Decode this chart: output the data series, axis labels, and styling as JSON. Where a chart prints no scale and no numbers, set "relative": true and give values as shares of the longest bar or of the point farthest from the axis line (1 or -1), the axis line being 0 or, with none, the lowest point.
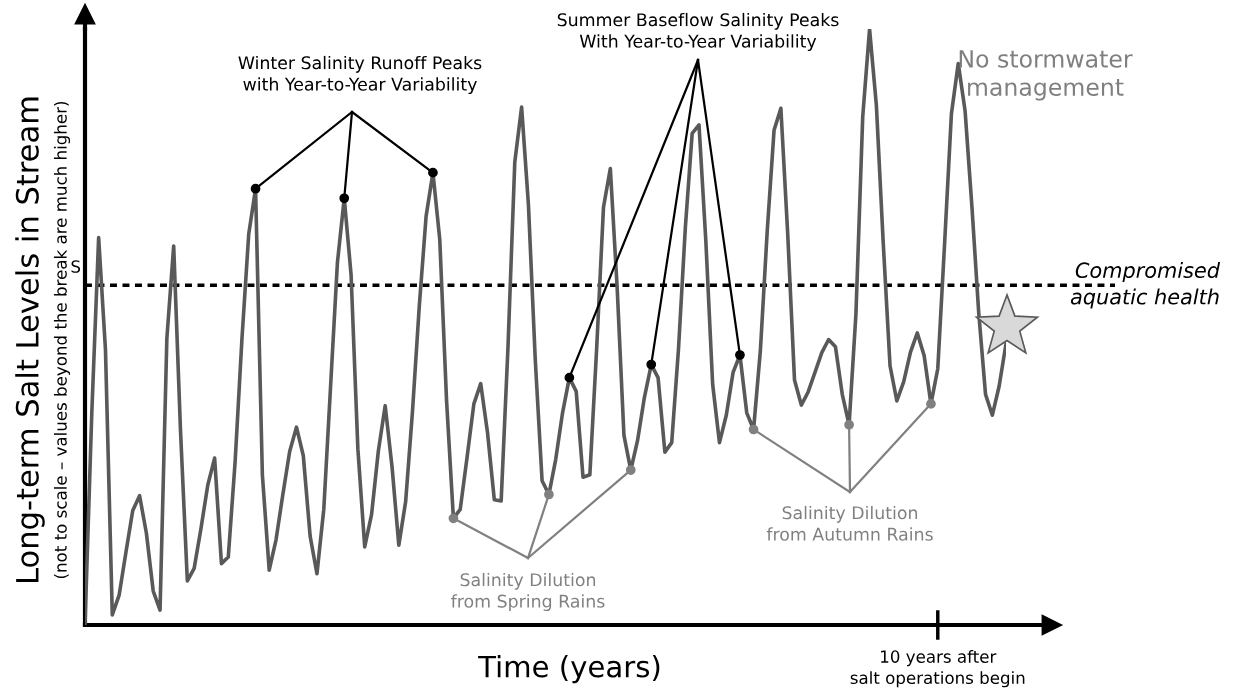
{
  "chart_data": {
    "type": "line",
    "relative": true,
    "xlabel": "Time (years)",
    "ylabel": "Long-term Salt Levels in Stream",
    "categories": [
      null,
      null,
      null,
      null,
      null,
      null,
      null,
      null,
      null,
      null,
      null,
      null,
      null,
      null,
      null,
      null,
      null,
      null,
      null,
      null,
      null,
      null,
      null,
      null,
      null,
      null,
      null,
      null,
      null,
      null,
      null,
      null,
      null,
      null,
      null,
      null,
      null,
      null,
      null,
      null,
      null,
      null,
      null,
      null,
      null,
      null,
      null,
      null,
      null,
      null,
      null,
      null,
      null,
      null,
      null,
      null,
      null,
      null,
      null,
      null,
      null,
      null,
      null,
      null,
      null,
      null,
      null,
      null,
      null,
      null,
      null,
      null,
      null,
      null,
      null,
      null,
      null,
      null,
      null,
      null,
      null,
      null,
      null,
      null,
      null,
      null,
      null,
      null,
      null,
      null,
      null,
      null,
      null,
      null,
      null,
      null,
      null,
      null,
      null,
      null,
      null,
      null,
      null,
      null,
      null,
      null,
      null,
      null,
      null,
      null,
      null,
      null,
      null,
      null,
      null,
      null,
      null,
      null,
      null,
      null,
      null,
      null,
      null,
      null,
      null,
      null,
      null,
      null,
      null,
      null,
      null,
      null,
      null,
      null,
      null,
      null
    ],
    "series": [
      {
        "name": "No stormwater management",
        "color": "#595959",
        "values": [
          0.0,
          0.357,
          0.65,
          0.462,
          0.017,
          0.05,
          0.122,
          0.192,
          0.217,
          0.154,
          0.057,
          0.025,
          0.481,
          0.636,
          0.326,
          0.074,
          0.095,
          0.162,
          0.235,
          0.28,
          0.103,
          0.114,
          0.273,
          0.479,
          0.656,
          0.732,
          0.252,
          0.092,
          0.143,
          0.219,
          0.291,
          0.332,
          0.284,
          0.149,
          0.086,
          0.194,
          0.401,
          0.608,
          0.716,
          0.588,
          0.295,
          0.131,
          0.185,
          0.292,
          0.368,
          0.266,
          0.134,
          0.207,
          0.358,
          0.535,
          0.686,
          0.759,
          0.647,
          0.376,
          0.179,
          0.194,
          0.281,
          0.371,
          0.405,
          0.323,
          0.21,
          0.208,
          0.466,
          0.777,
          0.869,
          0.705,
          0.445,
          0.242,
          0.219,
          0.278,
          0.356,
          0.415,
          0.392,
          0.248,
          0.252,
          0.464,
          0.701,
          0.766,
          0.567,
          0.318,
          0.26,
          0.31,
          0.382,
          0.437,
          0.415,
          0.29,
          0.306,
          0.464,
          0.667,
          0.825,
          0.839,
          0.645,
          0.404,
          0.306,
          0.352,
          0.424,
          0.453,
          0.356,
          0.328,
          0.461,
          0.661,
          0.83,
          0.867,
          0.657,
          0.411,
          0.369,
          0.391,
          0.424,
          0.457,
          0.479,
          0.467,
          0.387,
          0.336,
          0.521,
          0.853,
          1.0,
          0.872,
          0.642,
          0.435,
          0.376,
          0.408,
          0.458,
          0.49,
          0.452,
          0.371,
          0.43,
          0.64,
          0.858,
          0.942,
          0.863,
          0.703,
          0.524,
          0.387,
          0.352,
          0.401,
          0.472
        ]
      }
    ],
    "ref_lines": [
      {
        "axis": "y",
        "value": 0.57,
        "label": "Compromised\naquatic health",
        "color": "#000000",
        "line_style": "dashed"
      }
    ],
    "annotations": [
      "(not to scale – values beyond the break are much higher)",
      "S",
      "Winter Salinity Runoff Peaks\nwith Year-to-Year Variability",
      "Summer Baseflow Salinity Peaks\nWith Year-to-Year Variability",
      "Salinity Dilution\nfrom Spring Rains",
      "Salinity Dilution\nfrom Autumn Rains",
      "10 years after\nsalt operations begin"
    ],
    "marker": "none",
    "line_style": "solid"
  }
}
